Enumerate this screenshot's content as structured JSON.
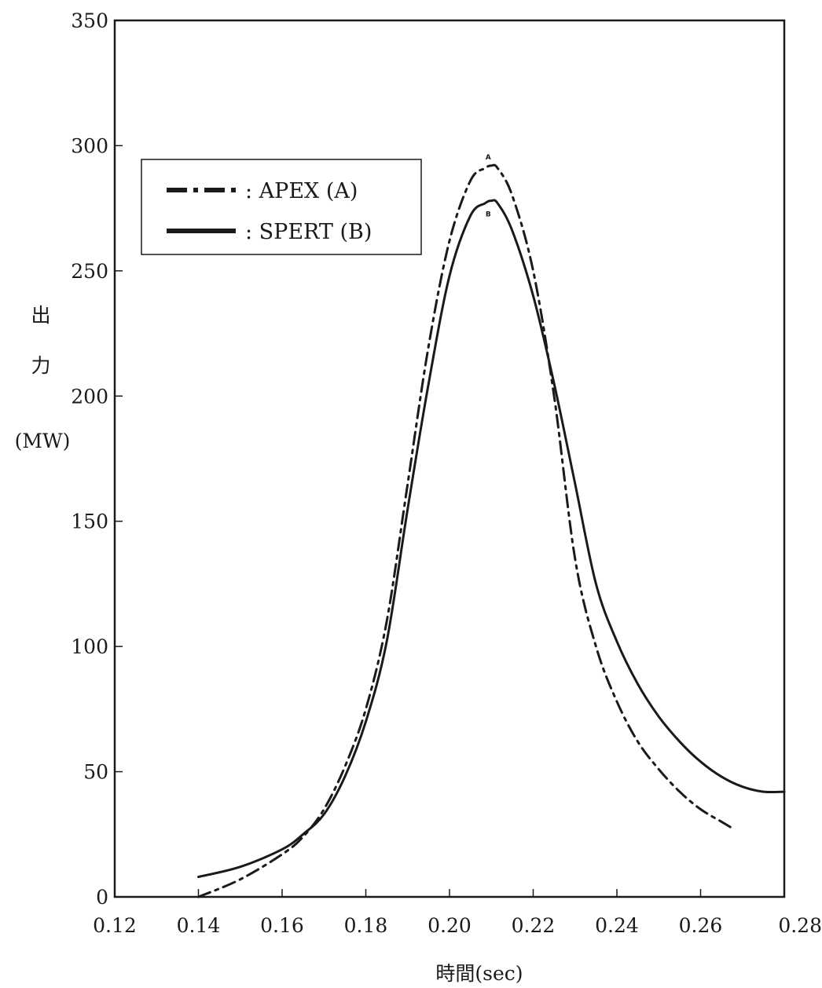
{
  "chart_data": {
    "type": "line",
    "title": "",
    "xlabel": "時間(sec)",
    "ylabel_lines": [
      "出",
      "力",
      "(MW)"
    ],
    "xlim": [
      0.12,
      0.28
    ],
    "ylim": [
      0,
      350
    ],
    "x_ticks": [
      0.12,
      0.14,
      0.16,
      0.18,
      0.2,
      0.22,
      0.24,
      0.26,
      0.28
    ],
    "x_tick_labels": [
      "0.12",
      "0.14",
      "0.16",
      "0.18",
      "0.20",
      "0.22",
      "0.24",
      "0.26",
      "0.28"
    ],
    "y_ticks": [
      0,
      50,
      100,
      150,
      200,
      250,
      300,
      350
    ],
    "y_tick_labels": [
      "0",
      "50",
      "100",
      "150",
      "200",
      "250",
      "300",
      "350"
    ],
    "grid": false,
    "legend_position": "top-left",
    "series": [
      {
        "name": ": APEX (A)",
        "marker_label": "A",
        "style": "dashdot",
        "color": "#1a1a1a",
        "x": [
          0.14,
          0.15,
          0.16,
          0.165,
          0.17,
          0.175,
          0.18,
          0.185,
          0.19,
          0.195,
          0.2,
          0.205,
          0.2085,
          0.21,
          0.2115,
          0.215,
          0.22,
          0.225,
          0.23,
          0.235,
          0.24,
          0.245,
          0.25,
          0.255,
          0.26,
          0.265,
          0.268
        ],
        "y": [
          0,
          7,
          17,
          24,
          35,
          52,
          75,
          110,
          165,
          220,
          262,
          286,
          291,
          292,
          291,
          280,
          250,
          200,
          135,
          100,
          78,
          62,
          51,
          42,
          35,
          30,
          27
        ]
      },
      {
        "name": ": SPERT (B)",
        "marker_label": "B",
        "style": "solid",
        "color": "#1a1a1a",
        "x": [
          0.14,
          0.15,
          0.16,
          0.165,
          0.17,
          0.175,
          0.18,
          0.185,
          0.19,
          0.195,
          0.2,
          0.205,
          0.2085,
          0.21,
          0.2115,
          0.215,
          0.22,
          0.225,
          0.23,
          0.235,
          0.24,
          0.245,
          0.25,
          0.255,
          0.26,
          0.265,
          0.27,
          0.275,
          0.28
        ],
        "y": [
          8,
          12,
          19,
          25,
          33,
          48,
          70,
          102,
          155,
          205,
          248,
          272,
          277,
          278,
          277,
          266,
          240,
          205,
          165,
          125,
          102,
          85,
          72,
          62,
          54,
          48,
          44,
          42,
          42
        ]
      }
    ]
  }
}
